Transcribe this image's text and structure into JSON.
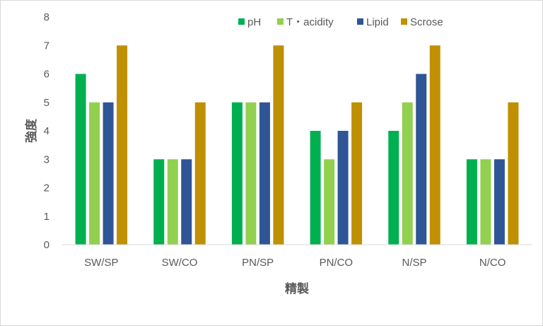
{
  "chart_data": {
    "type": "bar",
    "title": "",
    "xlabel": "精製",
    "ylabel": "強度",
    "ylim": [
      0,
      8
    ],
    "yticks": [
      "0",
      "1",
      "2",
      "3",
      "4",
      "5",
      "6",
      "7",
      "8"
    ],
    "grid": false,
    "legend_position": "top-right",
    "categories": [
      "SW/SP",
      "SW/CO",
      "PN/SP",
      "PN/CO",
      "N/SP",
      "N/CO"
    ],
    "series": [
      {
        "name": "pH",
        "color": "#00B050",
        "values": [
          6,
          3,
          5,
          4,
          4,
          3
        ]
      },
      {
        "name": "T・acidity",
        "color": "#92D050",
        "values": [
          5,
          3,
          5,
          3,
          5,
          3
        ]
      },
      {
        "name": "Lipid",
        "color": "#2F5597",
        "values": [
          5,
          3,
          5,
          4,
          6,
          3
        ]
      },
      {
        "name": "Scrose",
        "color": "#BF9000",
        "values": [
          7,
          5,
          7,
          5,
          7,
          5
        ]
      }
    ]
  }
}
